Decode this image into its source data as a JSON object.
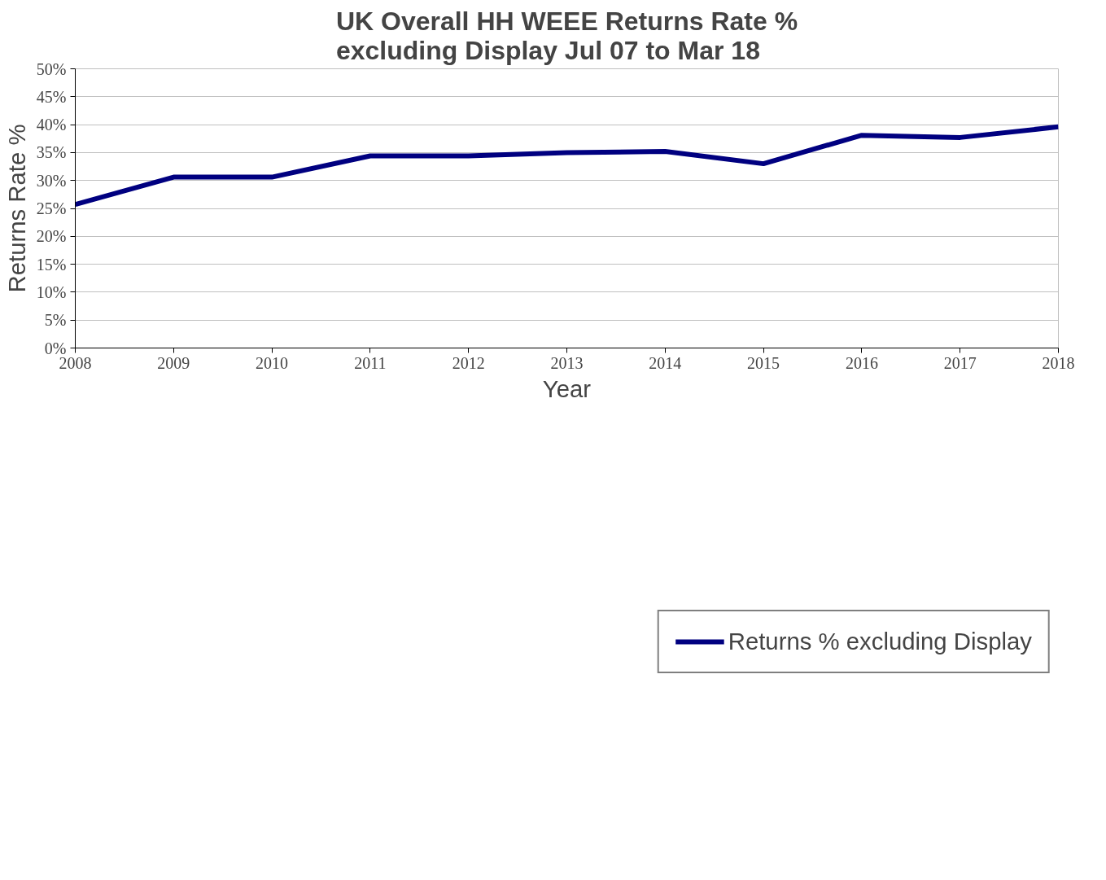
{
  "chart_data": {
    "type": "line",
    "title": "UK Overall HH WEEE Returns Rate %\nexcluding Display Jul 07 to Mar 18",
    "xlabel": "Year",
    "ylabel": "Returns Rate %",
    "x": [
      2008,
      2009,
      2010,
      2011,
      2012,
      2013,
      2014,
      2015,
      2016,
      2017,
      2018
    ],
    "series": [
      {
        "name": "Returns % excluding Display",
        "color": "#000080",
        "values": [
          25.7,
          30.6,
          30.6,
          34.4,
          34.4,
          35.0,
          35.2,
          33.0,
          38.1,
          37.7,
          39.6
        ]
      }
    ],
    "xlim": [
      2008,
      2018
    ],
    "xticks": [
      2008,
      2009,
      2010,
      2011,
      2012,
      2013,
      2014,
      2015,
      2016,
      2017,
      2018
    ],
    "ylim": [
      0,
      50
    ],
    "yticks": [
      {
        "value": 0,
        "label": "0%"
      },
      {
        "value": 5,
        "label": "5%"
      },
      {
        "value": 10,
        "label": "10%"
      },
      {
        "value": 15,
        "label": "15%"
      },
      {
        "value": 20,
        "label": "20%"
      },
      {
        "value": 25,
        "label": "25%"
      },
      {
        "value": 30,
        "label": "30%"
      },
      {
        "value": 35,
        "label": "35%"
      },
      {
        "value": 40,
        "label": "40%"
      },
      {
        "value": 45,
        "label": "45%"
      },
      {
        "value": 50,
        "label": "50%"
      }
    ],
    "grid": "y",
    "legend": "bottom",
    "marker": "none",
    "line_style": "solid"
  }
}
